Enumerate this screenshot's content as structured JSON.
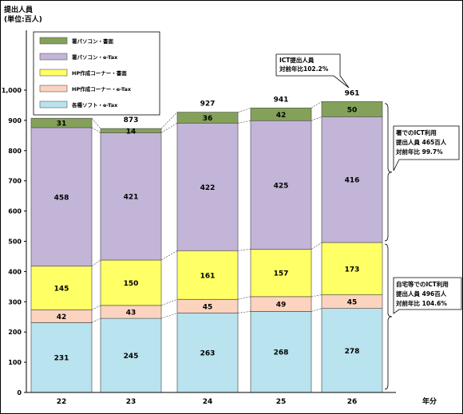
{
  "chart_data": {
    "type": "bar",
    "stacked": true,
    "ylabel_line1": "提出人員",
    "ylabel_line2": "(単位:百人)",
    "xlabel": "年分",
    "categories": [
      "22",
      "23",
      "24",
      "25",
      "26"
    ],
    "ylim": [
      0,
      1000
    ],
    "yticks": [
      "0",
      "100",
      "200",
      "300",
      "400",
      "500",
      "600",
      "700",
      "800",
      "900",
      "1,000"
    ],
    "grid": false,
    "legend_position": "top-left",
    "series": [
      {
        "name": "各種ソフト・e-Tax",
        "color": "#b9e3ee",
        "values": [
          231,
          245,
          263,
          268,
          278
        ]
      },
      {
        "name": "HP作成コーナー・e-Tax",
        "color": "#fcd3bf",
        "values": [
          42,
          43,
          45,
          49,
          45
        ]
      },
      {
        "name": "HP作成コーナー・書面",
        "color": "#ffff66",
        "values": [
          145,
          150,
          161,
          157,
          173
        ]
      },
      {
        "name": "署パソコン・e-Tax",
        "color": "#c3b5d8",
        "values": [
          458,
          421,
          422,
          425,
          416
        ]
      },
      {
        "name": "署パソコン・書面",
        "color": "#84a15a",
        "values": [
          31,
          14,
          36,
          42,
          50
        ]
      }
    ],
    "totals": [
      "908",
      "873",
      "927",
      "941",
      "961"
    ],
    "annotations": {
      "ict_total": {
        "line1": "ICT提出人員",
        "line2": "対前年比102.2%"
      },
      "office": {
        "line1": "署でのICT利用",
        "line2": "提出人員 465百人",
        "line3": "対前年比 99.7%"
      },
      "home": {
        "line1": "自宅等でのICT利用",
        "line2": "提出人員 496百人",
        "line3": "対前年比 104.6%"
      }
    }
  }
}
